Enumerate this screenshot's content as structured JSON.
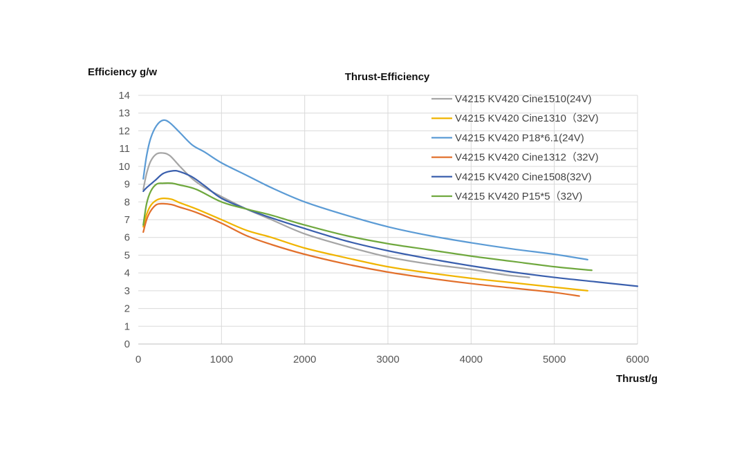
{
  "chart_data": {
    "type": "line",
    "title": "Thrust-Efficiency",
    "xlabel": "Thrust/g",
    "ylabel": "Efficiency g/w",
    "xlim": [
      0,
      6000
    ],
    "ylim": [
      0,
      14
    ],
    "xticks": [
      0,
      1000,
      2000,
      3000,
      4000,
      5000,
      6000
    ],
    "yticks": [
      0,
      1,
      2,
      3,
      4,
      5,
      6,
      7,
      8,
      9,
      10,
      11,
      12,
      13,
      14
    ],
    "grid": true,
    "legend_position": "top-right",
    "series": [
      {
        "name": "V4215 KV420 Cine1510(24V)",
        "color": "#a5a5a5",
        "points": [
          [
            60,
            8.7
          ],
          [
            100,
            9.6
          ],
          [
            150,
            10.3
          ],
          [
            220,
            10.7
          ],
          [
            300,
            10.75
          ],
          [
            380,
            10.6
          ],
          [
            500,
            10.0
          ],
          [
            650,
            9.3
          ],
          [
            800,
            8.8
          ],
          [
            1000,
            8.3
          ],
          [
            1300,
            7.6
          ],
          [
            1600,
            7.0
          ],
          [
            2000,
            6.2
          ],
          [
            2500,
            5.5
          ],
          [
            3000,
            4.9
          ],
          [
            3500,
            4.5
          ],
          [
            4000,
            4.2
          ],
          [
            4400,
            3.9
          ],
          [
            4700,
            3.75
          ]
        ]
      },
      {
        "name": "V4215 KV420 Cine1310（32V)",
        "color": "#f0b400",
        "points": [
          [
            60,
            6.6
          ],
          [
            100,
            7.3
          ],
          [
            150,
            7.8
          ],
          [
            220,
            8.1
          ],
          [
            300,
            8.2
          ],
          [
            400,
            8.15
          ],
          [
            500,
            7.95
          ],
          [
            700,
            7.6
          ],
          [
            1000,
            7.0
          ],
          [
            1300,
            6.4
          ],
          [
            1600,
            6.0
          ],
          [
            2000,
            5.4
          ],
          [
            2500,
            4.85
          ],
          [
            3000,
            4.35
          ],
          [
            3500,
            4.0
          ],
          [
            4000,
            3.7
          ],
          [
            4500,
            3.45
          ],
          [
            5000,
            3.2
          ],
          [
            5400,
            3.0
          ]
        ]
      },
      {
        "name": "V4215 KV420 P18*6.1(24V)",
        "color": "#5b9bd5",
        "points": [
          [
            60,
            9.3
          ],
          [
            100,
            10.6
          ],
          [
            150,
            11.6
          ],
          [
            220,
            12.3
          ],
          [
            300,
            12.6
          ],
          [
            380,
            12.45
          ],
          [
            500,
            11.9
          ],
          [
            650,
            11.2
          ],
          [
            800,
            10.8
          ],
          [
            1000,
            10.2
          ],
          [
            1300,
            9.5
          ],
          [
            1600,
            8.8
          ],
          [
            2000,
            8.0
          ],
          [
            2500,
            7.25
          ],
          [
            3000,
            6.6
          ],
          [
            3500,
            6.1
          ],
          [
            4000,
            5.7
          ],
          [
            4500,
            5.35
          ],
          [
            5000,
            5.05
          ],
          [
            5400,
            4.75
          ]
        ]
      },
      {
        "name": "V4215 KV420 Cine1312（32V)",
        "color": "#e2702c",
        "points": [
          [
            60,
            6.3
          ],
          [
            100,
            7.0
          ],
          [
            150,
            7.5
          ],
          [
            220,
            7.85
          ],
          [
            300,
            7.9
          ],
          [
            400,
            7.85
          ],
          [
            500,
            7.7
          ],
          [
            700,
            7.4
          ],
          [
            1000,
            6.8
          ],
          [
            1300,
            6.1
          ],
          [
            1600,
            5.6
          ],
          [
            2000,
            5.05
          ],
          [
            2500,
            4.5
          ],
          [
            3000,
            4.05
          ],
          [
            3500,
            3.7
          ],
          [
            4000,
            3.4
          ],
          [
            4500,
            3.15
          ],
          [
            5000,
            2.9
          ],
          [
            5300,
            2.7
          ]
        ]
      },
      {
        "name": "V4215 KV420 Cine1508(32V)",
        "color": "#3a5fad",
        "points": [
          [
            60,
            8.6
          ],
          [
            100,
            8.8
          ],
          [
            200,
            9.2
          ],
          [
            300,
            9.6
          ],
          [
            420,
            9.75
          ],
          [
            500,
            9.7
          ],
          [
            650,
            9.4
          ],
          [
            800,
            8.9
          ],
          [
            1000,
            8.2
          ],
          [
            1300,
            7.6
          ],
          [
            1600,
            7.1
          ],
          [
            2000,
            6.5
          ],
          [
            2500,
            5.8
          ],
          [
            3000,
            5.25
          ],
          [
            3500,
            4.8
          ],
          [
            4000,
            4.4
          ],
          [
            4500,
            4.05
          ],
          [
            5000,
            3.75
          ],
          [
            5500,
            3.5
          ],
          [
            6000,
            3.25
          ]
        ]
      },
      {
        "name": "V4215 KV420 P15*5（32V)",
        "color": "#6fa83e",
        "points": [
          [
            60,
            6.7
          ],
          [
            100,
            7.9
          ],
          [
            150,
            8.6
          ],
          [
            220,
            9.0
          ],
          [
            300,
            9.05
          ],
          [
            400,
            9.05
          ],
          [
            500,
            8.95
          ],
          [
            700,
            8.7
          ],
          [
            1000,
            8.0
          ],
          [
            1300,
            7.6
          ],
          [
            1600,
            7.25
          ],
          [
            2000,
            6.7
          ],
          [
            2500,
            6.1
          ],
          [
            3000,
            5.65
          ],
          [
            3500,
            5.3
          ],
          [
            4000,
            4.95
          ],
          [
            4500,
            4.65
          ],
          [
            5000,
            4.35
          ],
          [
            5450,
            4.15
          ]
        ]
      }
    ]
  }
}
